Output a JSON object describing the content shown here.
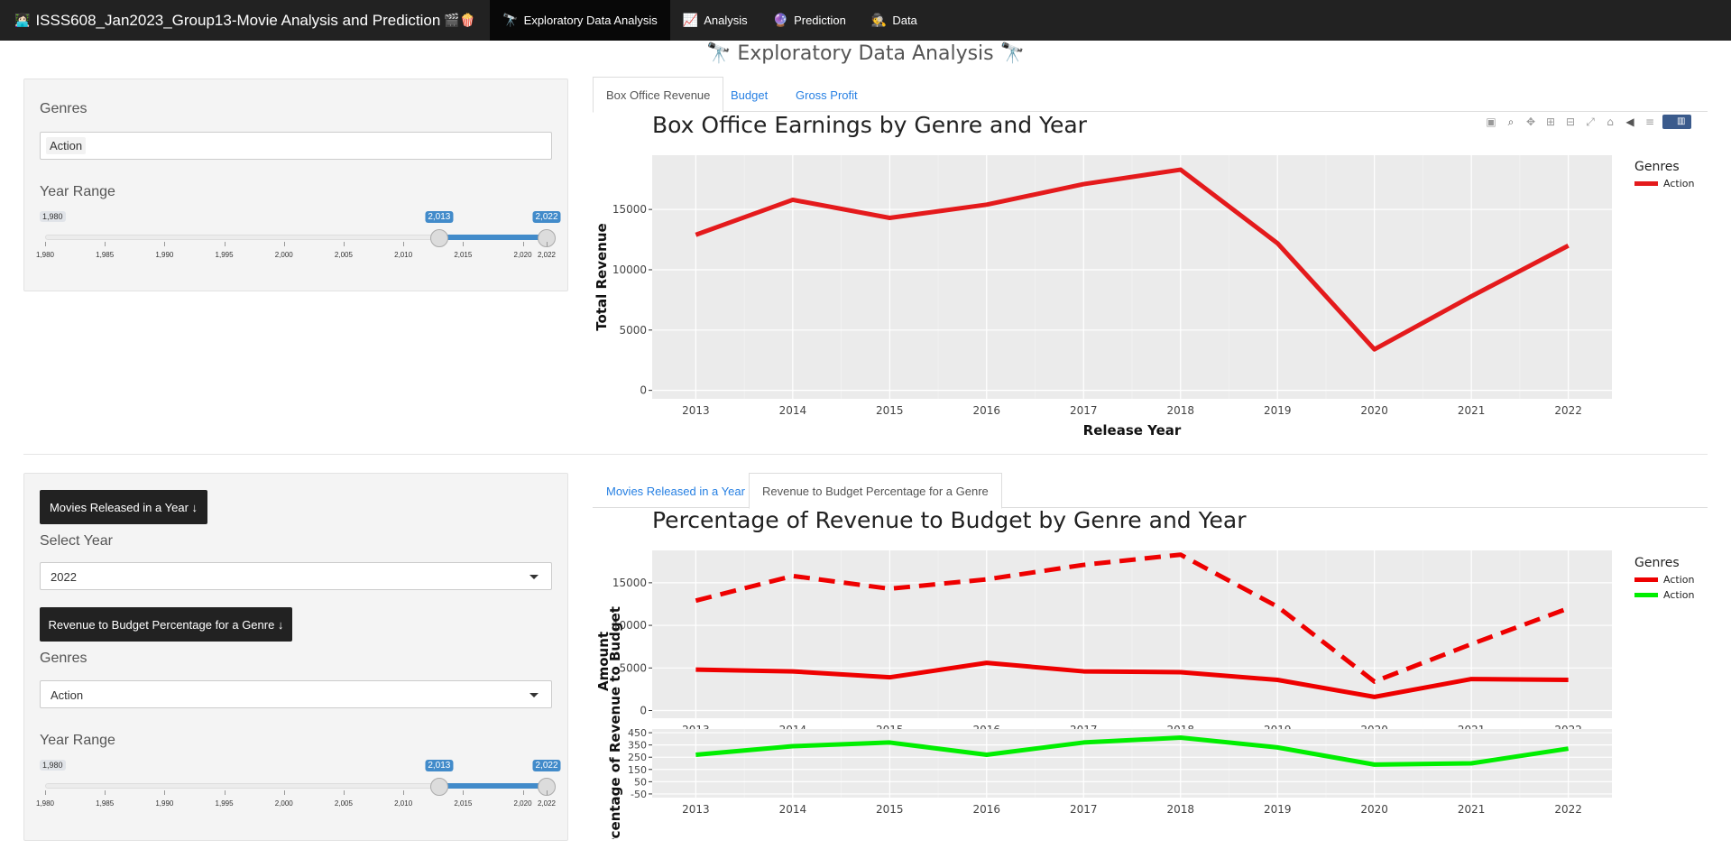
{
  "navbar": {
    "brand_icon": "👩🏻‍💻",
    "brand": "ISSS608_Jan2023_Group13-Movie Analysis and Prediction",
    "brand_suffix": "🎬🍿",
    "tabs": [
      {
        "icon": "🔭",
        "label": "Exploratory Data Analysis"
      },
      {
        "icon": "📈",
        "label": "Analysis"
      },
      {
        "icon": "🔮",
        "label": "Prediction"
      },
      {
        "icon": "🕵",
        "label": "Data"
      }
    ]
  },
  "page_title": "🔭 Exploratory Data Analysis 🔭",
  "top_sidebar": {
    "genres_label": "Genres",
    "genres_selected": "Action",
    "year_range_label": "Year Range",
    "slider": {
      "min_label": "1,980",
      "from_label": "2,013",
      "to_label": "2,022",
      "min": 1980,
      "max": 2022,
      "from": 2013,
      "to": 2022,
      "ticks": [
        "1,980",
        "1,985",
        "1,990",
        "1,995",
        "2,000",
        "2,005",
        "2,010",
        "2,015",
        "2,020",
        "2,022"
      ]
    }
  },
  "top_tabs": [
    "Box Office Revenue",
    "Budget",
    "Gross Profit"
  ],
  "bottom_sidebar": {
    "btn_movies": "Movies Released in a Year ↓",
    "select_year_label": "Select Year",
    "select_year_value": "2022",
    "btn_revenue": "Revenue to Budget Percentage for a Genre ↓",
    "genres_label": "Genres",
    "genres_value": "Action",
    "year_range_label": "Year Range",
    "slider": {
      "min_label": "1,980",
      "from_label": "2,013",
      "to_label": "2,022",
      "min": 1980,
      "max": 2022,
      "from": 2013,
      "to": 2022,
      "ticks": [
        "1,980",
        "1,985",
        "1,990",
        "1,995",
        "2,000",
        "2,005",
        "2,010",
        "2,015",
        "2,020",
        "2,022"
      ]
    }
  },
  "bottom_tabs": [
    "Movies Released in a Year",
    "Revenue to Budget Percentage for a Genre"
  ],
  "modebar_icons": [
    "camera-icon",
    "zoom-icon",
    "pan-icon",
    "zoom-in-icon",
    "zoom-out-icon",
    "autoscale-icon",
    "home-icon",
    "hover-closest-icon",
    "hover-compare-icon",
    "plotly-logo-icon"
  ],
  "chart_data": [
    {
      "type": "line",
      "title": "Box Office Earnings by Genre and Year",
      "xlabel": "Release Year",
      "ylabel": "Total Revenue",
      "x": [
        2013,
        2014,
        2015,
        2016,
        2017,
        2018,
        2019,
        2020,
        2021,
        2022
      ],
      "xlim": [
        2012.55,
        2022.45
      ],
      "ylim": [
        -700,
        19500
      ],
      "yticks": [
        0,
        5000,
        10000,
        15000
      ],
      "grid": true,
      "legend_title": "Genres",
      "legend_position": "right",
      "series": [
        {
          "name": "Action",
          "color": "#e41a1c",
          "dash": "solid",
          "values": [
            12900,
            15800,
            14300,
            15400,
            17100,
            18300,
            12200,
            3400,
            7800,
            12000
          ]
        }
      ]
    },
    {
      "type": "line",
      "title": "Percentage of Revenue to Budget by Genre and Year",
      "legend_title": "Genres",
      "legend_position": "right",
      "grid": true,
      "panels": [
        {
          "ylabel": "Amount",
          "x": [
            2013,
            2014,
            2015,
            2016,
            2017,
            2018,
            2019,
            2020,
            2021,
            2022
          ],
          "ylim": [
            -900,
            18800
          ],
          "yticks": [
            0,
            5000,
            10000,
            15000
          ],
          "series": [
            {
              "name": "Action",
              "color": "#ee0000",
              "dash": "dashed",
              "values": [
                12900,
                15800,
                14300,
                15400,
                17100,
                18300,
                12200,
                3400,
                7800,
                12000
              ]
            },
            {
              "name": "Action",
              "color": "#ee0000",
              "dash": "solid",
              "values": [
                4800,
                4600,
                3900,
                5600,
                4600,
                4500,
                3600,
                1600,
                3700,
                3600
              ]
            }
          ]
        },
        {
          "ylabel": "Percentage of Revenue to Budget",
          "x": [
            2013,
            2014,
            2015,
            2016,
            2017,
            2018,
            2019,
            2020,
            2021,
            2022
          ],
          "ylim": [
            -80,
            480
          ],
          "yticks": [
            -50,
            50,
            150,
            250,
            350,
            450
          ],
          "series": [
            {
              "name": "Action",
              "color": "#00ee00",
              "dash": "solid",
              "values": [
                270,
                340,
                370,
                270,
                370,
                410,
                330,
                190,
                200,
                320
              ]
            }
          ]
        }
      ],
      "legend": [
        {
          "name": "Action",
          "color": "#ee0000"
        },
        {
          "name": "Action",
          "color": "#00ee00"
        }
      ]
    }
  ]
}
